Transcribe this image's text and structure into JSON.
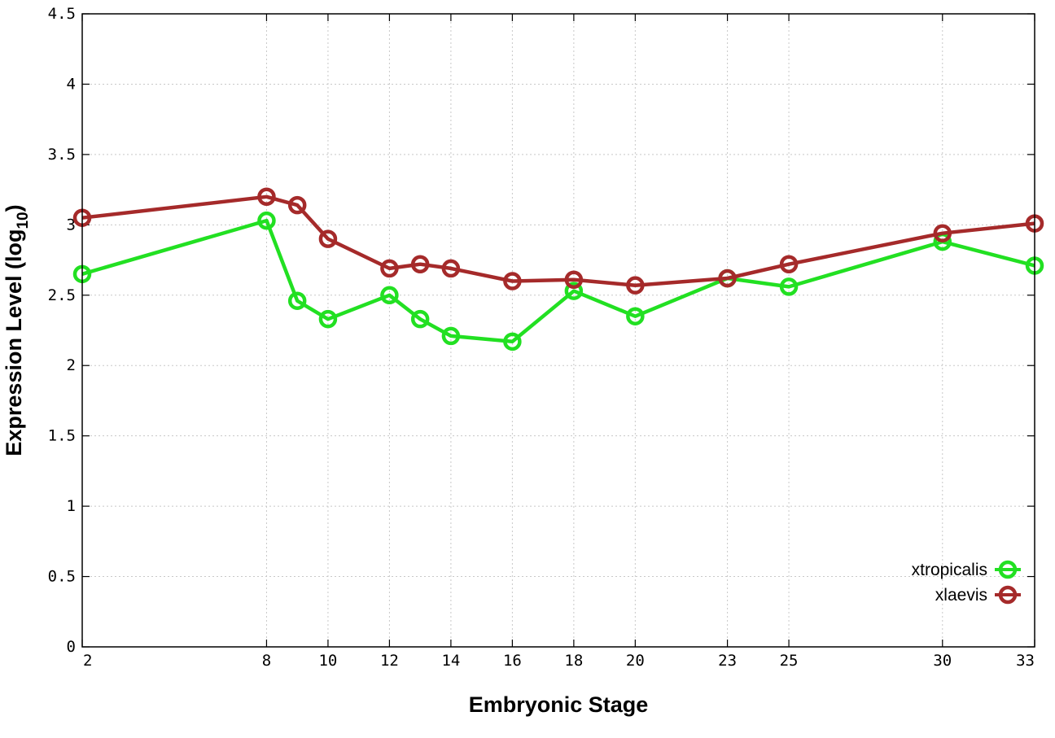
{
  "chart_data": {
    "type": "line",
    "xlabel": "Embryonic Stage",
    "ylabel": "Expression Level (log",
    "ylabel_sub": "10",
    "ylabel_close": ")",
    "x": [
      2,
      8,
      9,
      10,
      12,
      13,
      14,
      16,
      18,
      20,
      23,
      25,
      30,
      33
    ],
    "x_tick_labels": [
      "2",
      "8",
      "10",
      "12",
      "14",
      "16",
      "18",
      "20",
      "23",
      "25",
      "30",
      "33"
    ],
    "x_ticks": [
      2,
      8,
      10,
      12,
      14,
      16,
      18,
      20,
      23,
      25,
      30,
      33
    ],
    "xlim": [
      2,
      33
    ],
    "y_ticks": [
      0,
      0.5,
      1,
      1.5,
      2,
      2.5,
      3,
      3.5,
      4,
      4.5
    ],
    "y_tick_labels": [
      "0",
      "0.5",
      "1",
      "1.5",
      "2",
      "2.5",
      "3",
      "3.5",
      "4",
      "4.5"
    ],
    "ylim": [
      0,
      4.5
    ],
    "grid": true,
    "legend_position": "bottom-right",
    "series": [
      {
        "name": "xtropicalis",
        "color": "#22e022",
        "values": [
          2.65,
          3.03,
          2.46,
          2.33,
          2.5,
          2.33,
          2.21,
          2.17,
          2.53,
          2.35,
          2.62,
          2.56,
          2.88,
          2.71
        ]
      },
      {
        "name": "xlaevis",
        "color": "#a52a2a",
        "values": [
          3.05,
          3.2,
          3.14,
          2.9,
          2.69,
          2.72,
          2.69,
          2.6,
          2.61,
          2.57,
          2.62,
          2.72,
          2.94,
          3.01
        ]
      }
    ]
  }
}
